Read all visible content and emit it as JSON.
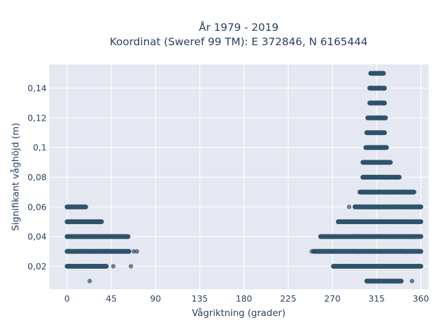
{
  "chart_data": {
    "type": "scatter",
    "title_line1": "År 1979 - 2019",
    "title_line2": "Koordinat (Sweref 99 TM): E 372846, N 6165444",
    "xlabel": "Vågriktning (grader)",
    "ylabel": "Signifikant våghöjd (m)",
    "xlim": [
      -18,
      368
    ],
    "ylim": [
      0.0045,
      0.156
    ],
    "x_ticks": [
      {
        "value": 0,
        "label": "0"
      },
      {
        "value": 45,
        "label": "45"
      },
      {
        "value": 90,
        "label": "90"
      },
      {
        "value": 135,
        "label": "135"
      },
      {
        "value": 180,
        "label": "180"
      },
      {
        "value": 225,
        "label": "225"
      },
      {
        "value": 270,
        "label": "270"
      },
      {
        "value": 315,
        "label": "315"
      },
      {
        "value": 360,
        "label": "360"
      }
    ],
    "y_ticks": [
      {
        "value": 0.02,
        "label": "0,02"
      },
      {
        "value": 0.04,
        "label": "0,04"
      },
      {
        "value": 0.06,
        "label": "0,06"
      },
      {
        "value": 0.08,
        "label": "0,08"
      },
      {
        "value": 0.1,
        "label": "0,1"
      },
      {
        "value": 0.12,
        "label": "0,12"
      },
      {
        "value": 0.14,
        "label": "0,14"
      }
    ],
    "grid": true,
    "marker_color": "#2e5369",
    "plot_bg": "#e5e8f0",
    "bands": [
      {
        "y": 0.01,
        "segments": [
          [
            305,
            340
          ]
        ],
        "outliers": [
          23,
          351
        ]
      },
      {
        "y": 0.02,
        "segments": [
          [
            0,
            40
          ],
          [
            271,
            360
          ]
        ],
        "outliers": [
          47,
          65
        ]
      },
      {
        "y": 0.03,
        "segments": [
          [
            0,
            63
          ],
          [
            251,
            360
          ]
        ],
        "outliers": [
          68,
          71,
          249
        ]
      },
      {
        "y": 0.04,
        "segments": [
          [
            0,
            62
          ],
          [
            258,
            360
          ]
        ],
        "outliers": []
      },
      {
        "y": 0.05,
        "segments": [
          [
            0,
            35
          ],
          [
            276,
            360
          ]
        ],
        "outliers": []
      },
      {
        "y": 0.06,
        "segments": [
          [
            0,
            19
          ],
          [
            293,
            360
          ]
        ],
        "outliers": [
          287
        ]
      },
      {
        "y": 0.07,
        "segments": [
          [
            298,
            353
          ]
        ],
        "outliers": []
      },
      {
        "y": 0.08,
        "segments": [
          [
            301,
            338
          ]
        ],
        "outliers": []
      },
      {
        "y": 0.09,
        "segments": [
          [
            301,
            329
          ]
        ],
        "outliers": []
      },
      {
        "y": 0.1,
        "segments": [
          [
            304,
            325
          ]
        ],
        "outliers": []
      },
      {
        "y": 0.11,
        "segments": [
          [
            305,
            323
          ]
        ],
        "outliers": []
      },
      {
        "y": 0.12,
        "segments": [
          [
            306,
            324
          ]
        ],
        "outliers": []
      },
      {
        "y": 0.13,
        "segments": [
          [
            308,
            323
          ]
        ],
        "outliers": []
      },
      {
        "y": 0.14,
        "segments": [
          [
            308,
            323
          ]
        ],
        "outliers": []
      },
      {
        "y": 0.15,
        "segments": [
          [
            309,
            322
          ]
        ],
        "outliers": []
      }
    ]
  }
}
